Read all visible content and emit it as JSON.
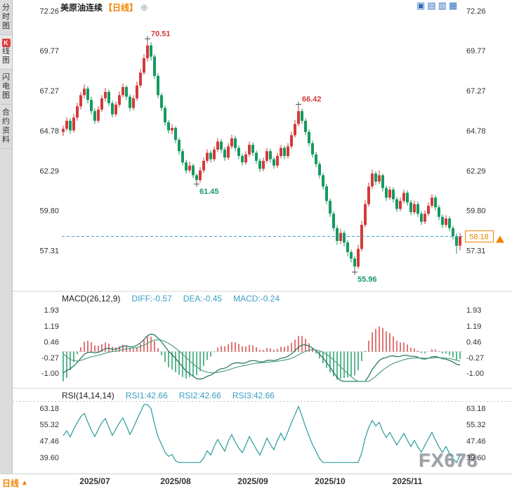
{
  "header": {
    "title": "美原油连续",
    "timeframe": "【日线】",
    "add_icon": "⊕",
    "layout_icons": [
      {
        "name": "layout-single-icon",
        "glyph": "▣"
      },
      {
        "name": "layout-split-horizontal-icon",
        "glyph": "▤"
      },
      {
        "name": "layout-split-vertical-icon",
        "glyph": "▥"
      },
      {
        "name": "layout-grid-icon",
        "glyph": "▦"
      }
    ]
  },
  "sidebar": {
    "items": [
      {
        "name": "sidebar-item-time-chart",
        "label": "分时图",
        "active": false,
        "k_badge": false
      },
      {
        "name": "sidebar-item-kline-chart",
        "label": "K线图",
        "active": true,
        "k_badge": true
      },
      {
        "name": "sidebar-item-flash-chart",
        "label": "闪电图",
        "active": false,
        "k_badge": false
      },
      {
        "name": "sidebar-item-contract-info",
        "label": "合约资料",
        "active": false,
        "k_badge": false
      }
    ]
  },
  "macd_panel": {
    "title": "MACD(26,12,9)",
    "diff_label": "DIFF:-0.57",
    "dea_label": "DEA:-0.45",
    "macd_label": "MACD:-0.24"
  },
  "rsi_panel": {
    "title": "RSI(14,14,14)",
    "rsi1_label": "RSI1:42.66",
    "rsi2_label": "RSI2:42.66",
    "rsi3_label": "RSI3:42.66"
  },
  "footer": {
    "timeframe_label": "日线",
    "arrow": "▲"
  },
  "watermark": "FX678",
  "colors": {
    "up": "#d23b3a",
    "down": "#149a60",
    "accent_orange": "#f08200",
    "header_value": "#3b9fc4",
    "dashed_line": "#3aa4c8",
    "axis_text": "#333333",
    "icon_blue": "#2f6bc0",
    "cross": "#555555"
  },
  "chart_data": {
    "type": "candlestick",
    "symbol": "美原油连续",
    "timeframe": "日线",
    "ylim": [
      54.96,
      72.32
    ],
    "y_ticks": [
      72.26,
      69.77,
      67.27,
      64.78,
      62.29,
      59.8,
      57.31
    ],
    "current_price": 58.18,
    "x_labels": [
      {
        "label": "2025/07",
        "index": 9
      },
      {
        "label": "2025/08",
        "index": 32
      },
      {
        "label": "2025/09",
        "index": 54
      },
      {
        "label": "2025/10",
        "index": 76
      },
      {
        "label": "2025/11",
        "index": 98
      }
    ],
    "annotations": [
      {
        "label": "70.51",
        "index": 24,
        "price": 70.51,
        "type": "high"
      },
      {
        "label": "61.45",
        "index": 38,
        "price": 61.45,
        "type": "low"
      },
      {
        "label": "66.42",
        "index": 67,
        "price": 66.42,
        "type": "high"
      },
      {
        "label": "55.96",
        "index": 83,
        "price": 55.96,
        "type": "low"
      }
    ],
    "candles": [
      [
        64.7,
        65.1,
        64.45,
        64.9
      ],
      [
        64.9,
        65.62,
        64.75,
        65.4
      ],
      [
        65.4,
        65.55,
        64.58,
        64.8
      ],
      [
        64.8,
        65.85,
        64.66,
        65.6
      ],
      [
        65.6,
        66.52,
        65.4,
        66.3
      ],
      [
        66.3,
        67.18,
        66.1,
        67.0
      ],
      [
        67.0,
        67.66,
        66.8,
        67.4
      ],
      [
        67.4,
        67.55,
        66.48,
        66.7
      ],
      [
        66.7,
        66.9,
        65.8,
        66.0
      ],
      [
        66.0,
        66.15,
        65.2,
        65.4
      ],
      [
        65.4,
        66.3,
        65.25,
        66.1
      ],
      [
        66.1,
        67.0,
        65.95,
        66.8
      ],
      [
        66.8,
        67.45,
        66.6,
        67.2
      ],
      [
        67.2,
        67.35,
        66.3,
        66.5
      ],
      [
        66.5,
        66.65,
        65.6,
        65.8
      ],
      [
        65.8,
        66.6,
        65.65,
        66.4
      ],
      [
        66.4,
        67.22,
        66.25,
        67.0
      ],
      [
        67.0,
        67.72,
        66.85,
        67.5
      ],
      [
        67.5,
        67.62,
        66.7,
        66.9
      ],
      [
        66.9,
        67.05,
        66.0,
        66.2
      ],
      [
        66.2,
        67.0,
        66.05,
        66.8
      ],
      [
        66.8,
        67.85,
        66.65,
        67.6
      ],
      [
        67.6,
        68.62,
        67.45,
        68.4
      ],
      [
        68.4,
        69.55,
        68.25,
        69.3
      ],
      [
        69.3,
        70.51,
        69.1,
        70.1
      ],
      [
        70.1,
        70.3,
        69.15,
        69.4
      ],
      [
        69.4,
        69.55,
        68.0,
        68.2
      ],
      [
        68.2,
        68.35,
        66.8,
        67.0
      ],
      [
        67.0,
        67.15,
        66.0,
        66.2
      ],
      [
        66.2,
        66.35,
        65.1,
        65.3
      ],
      [
        65.3,
        65.45,
        64.6,
        64.8
      ],
      [
        64.8,
        65.2,
        64.55,
        64.95
      ],
      [
        64.95,
        65.05,
        64.0,
        64.2
      ],
      [
        64.2,
        64.35,
        63.3,
        63.5
      ],
      [
        63.5,
        63.65,
        62.6,
        62.8
      ],
      [
        62.8,
        62.95,
        62.1,
        62.3
      ],
      [
        62.3,
        62.85,
        62.15,
        62.6
      ],
      [
        62.6,
        62.72,
        61.82,
        62.0
      ],
      [
        62.0,
        62.1,
        61.45,
        61.7
      ],
      [
        61.7,
        62.5,
        61.55,
        62.3
      ],
      [
        62.3,
        63.1,
        62.15,
        62.9
      ],
      [
        62.9,
        63.62,
        62.75,
        63.4
      ],
      [
        63.4,
        63.55,
        62.8,
        63.0
      ],
      [
        63.0,
        63.8,
        62.85,
        63.6
      ],
      [
        63.6,
        64.32,
        63.45,
        64.1
      ],
      [
        64.1,
        64.25,
        63.4,
        63.6
      ],
      [
        63.6,
        63.75,
        62.9,
        63.1
      ],
      [
        63.1,
        64.0,
        62.95,
        63.8
      ],
      [
        63.8,
        64.52,
        63.65,
        64.3
      ],
      [
        64.3,
        64.45,
        63.5,
        63.7
      ],
      [
        63.7,
        63.85,
        63.0,
        63.2
      ],
      [
        63.2,
        63.35,
        62.6,
        62.8
      ],
      [
        62.8,
        63.5,
        62.65,
        63.3
      ],
      [
        63.3,
        64.1,
        63.15,
        63.9
      ],
      [
        63.9,
        64.05,
        63.2,
        63.4
      ],
      [
        63.4,
        63.55,
        62.7,
        62.9
      ],
      [
        62.9,
        63.05,
        62.2,
        62.4
      ],
      [
        62.4,
        63.1,
        62.25,
        62.9
      ],
      [
        62.9,
        63.7,
        62.75,
        63.5
      ],
      [
        63.5,
        63.65,
        62.8,
        63.0
      ],
      [
        63.0,
        63.15,
        62.4,
        62.6
      ],
      [
        62.6,
        63.4,
        62.45,
        63.2
      ],
      [
        63.2,
        63.9,
        63.05,
        63.7
      ],
      [
        63.7,
        63.85,
        63.0,
        63.2
      ],
      [
        63.2,
        64.0,
        63.05,
        63.8
      ],
      [
        63.8,
        64.72,
        63.65,
        64.5
      ],
      [
        64.5,
        65.45,
        64.35,
        65.2
      ],
      [
        65.2,
        66.42,
        65.05,
        66.0
      ],
      [
        66.0,
        66.15,
        65.2,
        65.4
      ],
      [
        65.4,
        65.55,
        64.5,
        64.7
      ],
      [
        64.7,
        64.85,
        63.8,
        64.0
      ],
      [
        64.0,
        64.15,
        63.1,
        63.3
      ],
      [
        63.3,
        63.45,
        62.5,
        62.7
      ],
      [
        62.7,
        62.85,
        61.8,
        62.0
      ],
      [
        62.0,
        62.15,
        61.1,
        61.3
      ],
      [
        61.3,
        61.45,
        60.2,
        60.4
      ],
      [
        60.4,
        60.55,
        59.4,
        59.6
      ],
      [
        59.6,
        59.75,
        58.5,
        58.7
      ],
      [
        58.7,
        58.85,
        57.65,
        57.9
      ],
      [
        57.9,
        58.65,
        57.7,
        58.4
      ],
      [
        58.4,
        58.55,
        57.55,
        57.8
      ],
      [
        57.8,
        57.95,
        56.95,
        57.2
      ],
      [
        57.2,
        57.35,
        56.55,
        56.8
      ],
      [
        56.8,
        56.95,
        55.96,
        56.3
      ],
      [
        56.3,
        57.65,
        56.15,
        57.4
      ],
      [
        57.4,
        59.15,
        57.25,
        58.9
      ],
      [
        58.9,
        60.45,
        58.75,
        60.2
      ],
      [
        60.2,
        61.55,
        60.05,
        61.3
      ],
      [
        61.3,
        62.35,
        61.15,
        62.1
      ],
      [
        62.1,
        62.25,
        61.4,
        61.6
      ],
      [
        61.6,
        62.3,
        61.45,
        62.0
      ],
      [
        62.0,
        62.1,
        61.0,
        61.2
      ],
      [
        61.2,
        61.35,
        60.4,
        60.6
      ],
      [
        60.6,
        61.3,
        60.45,
        61.1
      ],
      [
        61.1,
        61.25,
        60.3,
        60.5
      ],
      [
        60.5,
        60.65,
        59.7,
        59.9
      ],
      [
        59.9,
        60.6,
        59.75,
        60.4
      ],
      [
        60.4,
        61.1,
        60.25,
        60.9
      ],
      [
        60.9,
        61.05,
        60.1,
        60.3
      ],
      [
        60.3,
        60.45,
        59.5,
        59.7
      ],
      [
        59.7,
        60.4,
        59.55,
        60.2
      ],
      [
        60.2,
        60.35,
        59.4,
        59.6
      ],
      [
        59.6,
        59.75,
        58.9,
        59.1
      ],
      [
        59.1,
        59.8,
        58.95,
        59.6
      ],
      [
        59.6,
        60.3,
        59.45,
        60.1
      ],
      [
        60.1,
        60.82,
        59.95,
        60.6
      ],
      [
        60.6,
        60.75,
        59.8,
        60.0
      ],
      [
        60.0,
        60.15,
        59.2,
        59.4
      ],
      [
        59.4,
        59.55,
        58.7,
        58.9
      ],
      [
        58.9,
        59.5,
        58.75,
        59.3
      ],
      [
        59.3,
        59.45,
        58.5,
        58.7
      ],
      [
        58.7,
        58.85,
        58.0,
        58.2
      ],
      [
        58.2,
        58.35,
        57.1,
        57.6
      ],
      [
        57.6,
        58.4,
        57.3,
        58.18
      ]
    ],
    "macd": {
      "params": [
        26,
        12,
        9
      ],
      "diff": -0.57,
      "dea": -0.45,
      "macd": -0.24,
      "y_ticks": [
        1.93,
        1.19,
        0.46,
        -0.27,
        -1.0
      ],
      "ylim": [
        -1.45,
        2.1
      ]
    },
    "rsi": {
      "params": [
        14,
        14,
        14
      ],
      "rsi1": 42.66,
      "rsi2": 42.66,
      "rsi3": 42.66,
      "y_ticks": [
        63.18,
        55.32,
        47.46,
        39.6
      ],
      "ylim": [
        36.5,
        65.5
      ]
    }
  }
}
